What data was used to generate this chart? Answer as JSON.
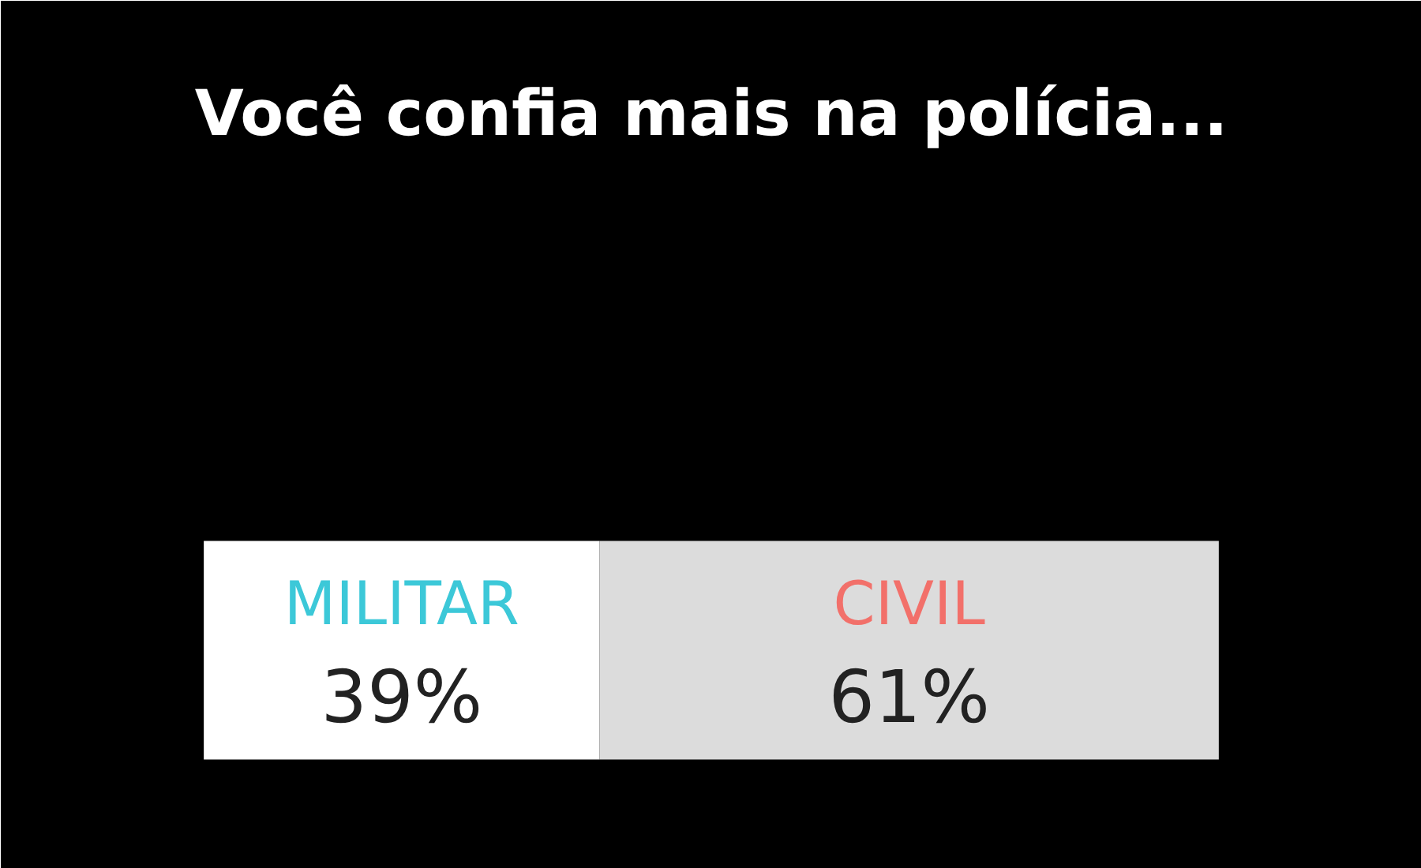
{
  "chart_data": {
    "type": "bar",
    "orientation": "horizontal",
    "stacked": true,
    "title": "Você confia mais na polícia...",
    "categories": [
      null
    ],
    "legend": false,
    "series": [
      {
        "name": "MILITAR",
        "color": "#ffffff",
        "values": [
          39
        ],
        "value_labels": [
          "39%"
        ]
      },
      {
        "name": "CIVIL",
        "color": "#dcdcdc",
        "values": [
          61
        ],
        "value_labels": [
          "61%"
        ]
      }
    ]
  }
}
